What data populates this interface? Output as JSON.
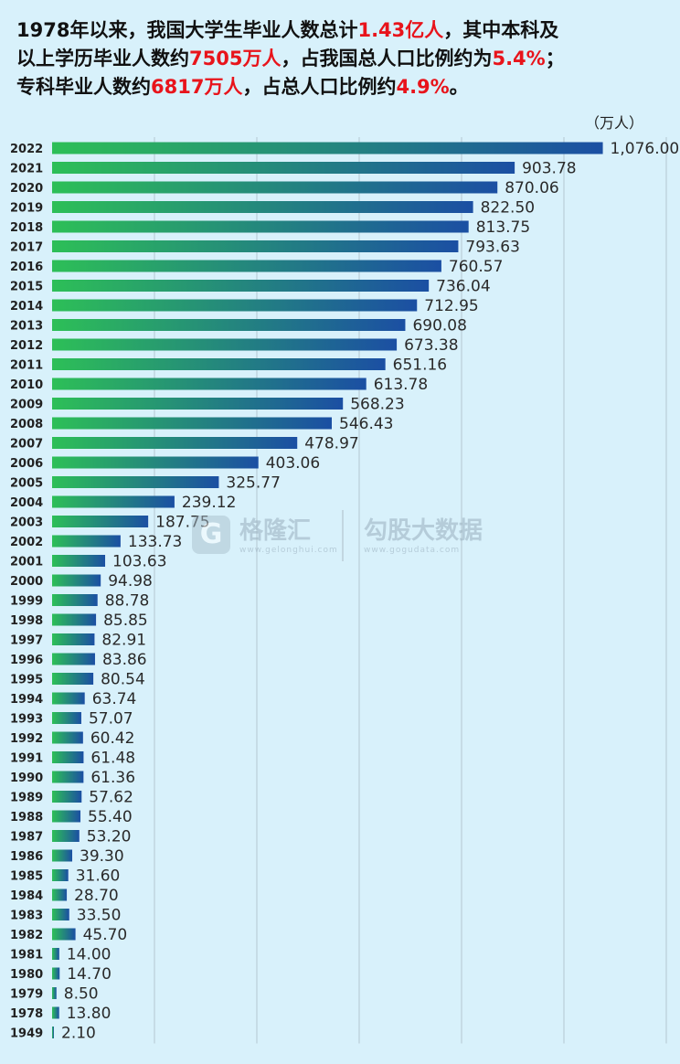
{
  "header": {
    "line1_a": "1978年以来，我国大学生毕业人数总计",
    "line1_total": "1.43亿人",
    "line1_b": "，其中本科及",
    "line2_a": "以上学历毕业人数约",
    "line2_bachelor": "7505万人",
    "line2_b": "，占我国总人口比例约为",
    "line2_pct": "5.4%",
    "line2_c": "；",
    "line3_a": "专科毕业人数约",
    "line3_college": "6817万人",
    "line3_b": "，占总人口比例约",
    "line3_pct": "4.9%",
    "line3_c": "。"
  },
  "watermark": {
    "logo_glyph": "G",
    "brand1": "格隆汇",
    "brand1_url": "www.gelonghui.com",
    "brand2": "勾股大数据",
    "brand2_url": "www.gogudata.com"
  },
  "chart_data": {
    "type": "bar",
    "orientation": "horizontal",
    "title": "",
    "unit_label": "（万人）",
    "xlim": [
      0,
      1200
    ],
    "grid": "vertical",
    "colors": {
      "bar_start": "#2dbf57",
      "bar_end": "#1b4fa3",
      "accent_red": "#e8141b"
    },
    "categories": [
      "2022",
      "2021",
      "2020",
      "2019",
      "2018",
      "2017",
      "2016",
      "2015",
      "2014",
      "2013",
      "2012",
      "2011",
      "2010",
      "2009",
      "2008",
      "2007",
      "2006",
      "2005",
      "2004",
      "2003",
      "2002",
      "2001",
      "2000",
      "1999",
      "1998",
      "1997",
      "1996",
      "1995",
      "1994",
      "1993",
      "1992",
      "1991",
      "1990",
      "1989",
      "1988",
      "1987",
      "1986",
      "1985",
      "1984",
      "1983",
      "1982",
      "1981",
      "1980",
      "1979",
      "1978",
      "1949"
    ],
    "values": [
      1076.0,
      903.78,
      870.06,
      822.5,
      813.75,
      793.63,
      760.57,
      736.04,
      712.95,
      690.08,
      673.38,
      651.16,
      613.78,
      568.23,
      546.43,
      478.97,
      403.06,
      325.77,
      239.12,
      187.75,
      133.73,
      103.63,
      94.98,
      88.78,
      85.85,
      82.91,
      83.86,
      80.54,
      63.74,
      57.07,
      60.42,
      61.48,
      61.36,
      57.62,
      55.4,
      53.2,
      39.3,
      31.6,
      28.7,
      33.5,
      45.7,
      14.0,
      14.7,
      8.5,
      13.8,
      2.1
    ],
    "labels": [
      "1,076.00",
      "903.78",
      "870.06",
      "822.50",
      "813.75",
      "793.63",
      "760.57",
      "736.04",
      "712.95",
      "690.08",
      "673.38",
      "651.16",
      "613.78",
      "568.23",
      "546.43",
      "478.97",
      "403.06",
      "325.77",
      "239.12",
      "187.75",
      "133.73",
      "103.63",
      "94.98",
      "88.78",
      "85.85",
      "82.91",
      "83.86",
      "80.54",
      "63.74",
      "57.07",
      "60.42",
      "61.48",
      "61.36",
      "57.62",
      "55.40",
      "53.20",
      "39.30",
      "31.60",
      "28.70",
      "33.50",
      "45.70",
      "14.00",
      "14.70",
      "8.50",
      "13.80",
      "2.10"
    ]
  }
}
